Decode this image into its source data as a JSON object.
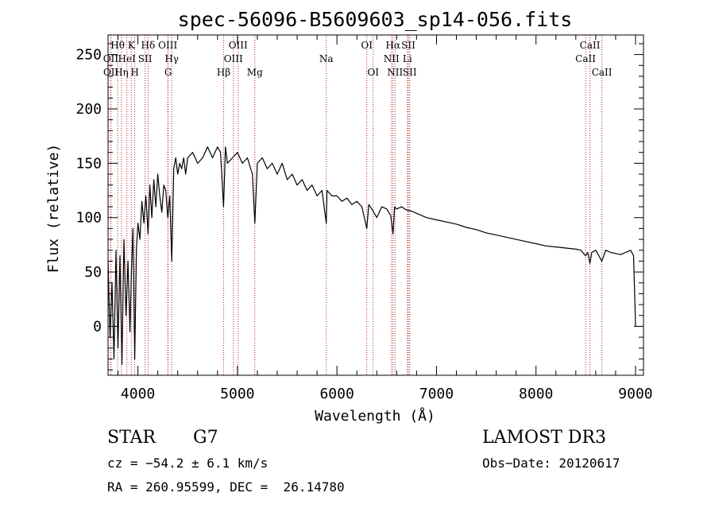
{
  "chart_data": {
    "type": "line",
    "title": "spec-56096-B5609603_sp14-056.fits",
    "xlabel": "Wavelength (Å)",
    "ylabel": "Flux (relative)",
    "xlim": [
      3700,
      9080
    ],
    "ylim": [
      -45,
      268
    ],
    "xticks": [
      4000,
      5000,
      6000,
      7000,
      8000,
      9000
    ],
    "yticks": [
      0,
      50,
      100,
      150,
      200,
      250
    ],
    "line_color": "#000000",
    "marker_color": "#b22222",
    "series": [
      {
        "name": "flux",
        "x": [
          3700,
          3720,
          3740,
          3760,
          3780,
          3800,
          3820,
          3840,
          3860,
          3880,
          3900,
          3920,
          3935,
          3950,
          3968,
          3985,
          4000,
          4020,
          4040,
          4060,
          4080,
          4102,
          4120,
          4140,
          4160,
          4180,
          4200,
          4220,
          4240,
          4260,
          4280,
          4300,
          4320,
          4340,
          4360,
          4380,
          4400,
          4420,
          4440,
          4460,
          4480,
          4500,
          4550,
          4600,
          4650,
          4700,
          4750,
          4800,
          4830,
          4861,
          4880,
          4900,
          4950,
          5000,
          5050,
          5100,
          5150,
          5175,
          5200,
          5250,
          5300,
          5350,
          5400,
          5450,
          5500,
          5550,
          5600,
          5650,
          5700,
          5750,
          5800,
          5850,
          5893,
          5900,
          5950,
          6000,
          6050,
          6100,
          6150,
          6200,
          6250,
          6300,
          6320,
          6350,
          6400,
          6450,
          6500,
          6540,
          6563,
          6580,
          6600,
          6650,
          6700,
          6750,
          6800,
          6900,
          7000,
          7100,
          7200,
          7300,
          7400,
          7500,
          7600,
          7700,
          7800,
          7900,
          8000,
          8100,
          8200,
          8300,
          8400,
          8450,
          8498,
          8520,
          8542,
          8560,
          8600,
          8662,
          8700,
          8750,
          8800,
          8850,
          8900,
          8950,
          8980,
          9000
        ],
        "values": [
          60,
          -10,
          40,
          -30,
          70,
          -20,
          65,
          -35,
          80,
          10,
          60,
          -5,
          50,
          90,
          -30,
          70,
          95,
          80,
          115,
          95,
          120,
          85,
          130,
          100,
          135,
          110,
          140,
          120,
          105,
          130,
          125,
          100,
          120,
          60,
          145,
          155,
          140,
          150,
          145,
          155,
          140,
          155,
          160,
          150,
          155,
          165,
          155,
          165,
          160,
          110,
          165,
          150,
          155,
          160,
          150,
          155,
          140,
          95,
          150,
          155,
          145,
          150,
          140,
          150,
          135,
          140,
          130,
          135,
          125,
          130,
          120,
          125,
          95,
          125,
          120,
          120,
          115,
          118,
          112,
          115,
          110,
          90,
          112,
          108,
          100,
          110,
          108,
          102,
          85,
          110,
          108,
          110,
          107,
          106,
          104,
          100,
          98,
          96,
          94,
          91,
          89,
          86,
          84,
          82,
          80,
          78,
          76,
          74,
          73,
          72,
          71,
          70,
          65,
          68,
          58,
          68,
          70,
          60,
          70,
          68,
          67,
          66,
          68,
          70,
          65,
          0
        ]
      }
    ],
    "lines": [
      {
        "name": "Hθ",
        "wave": 3797,
        "row": 1
      },
      {
        "name": "OII",
        "wave": 3727,
        "row": 2
      },
      {
        "name": "OII",
        "wave": 3729,
        "row": 3
      },
      {
        "name": "Hη",
        "wave": 3835,
        "row": 3
      },
      {
        "name": "HeI",
        "wave": 3889,
        "row": 2
      },
      {
        "name": "K",
        "wave": 3934,
        "row": 1
      },
      {
        "name": "H",
        "wave": 3968,
        "row": 3
      },
      {
        "name": "SII",
        "wave": 4072,
        "row": 2
      },
      {
        "name": "Hδ",
        "wave": 4102,
        "row": 1
      },
      {
        "name": "OIII",
        "wave": 4300,
        "row": 1
      },
      {
        "name": "Hγ",
        "wave": 4340,
        "row": 2
      },
      {
        "name": "G",
        "wave": 4304,
        "row": 3
      },
      {
        "name": "Hβ",
        "wave": 4861,
        "row": 3
      },
      {
        "name": "OIII",
        "wave": 4959,
        "row": 2
      },
      {
        "name": "OIII",
        "wave": 5007,
        "row": 1
      },
      {
        "name": "Mg",
        "wave": 5175,
        "row": 3
      },
      {
        "name": "Na",
        "wave": 5893,
        "row": 2
      },
      {
        "name": "OI",
        "wave": 6300,
        "row": 1
      },
      {
        "name": "OI",
        "wave": 6364,
        "row": 3
      },
      {
        "name": "Hα",
        "wave": 6563,
        "row": 1
      },
      {
        "name": "NII",
        "wave": 6548,
        "row": 2
      },
      {
        "name": "NII",
        "wave": 6584,
        "row": 3
      },
      {
        "name": "Li",
        "wave": 6708,
        "row": 2
      },
      {
        "name": "SII",
        "wave": 6717,
        "row": 1
      },
      {
        "name": "SII",
        "wave": 6731,
        "row": 3
      },
      {
        "name": "CaII",
        "wave": 8498,
        "row": 2
      },
      {
        "name": "CaII",
        "wave": 8542,
        "row": 1
      },
      {
        "name": "CaII",
        "wave": 8662,
        "row": 3
      }
    ]
  },
  "info": {
    "object_class": "STAR",
    "subclass": "G7",
    "survey": "LAMOST DR3",
    "velocity": "cz = −54.2 ± 6.1 km/s",
    "obs_date": "Obs−Date: 20120617",
    "coords": "RA = 260.95599, DEC =  26.14780"
  }
}
